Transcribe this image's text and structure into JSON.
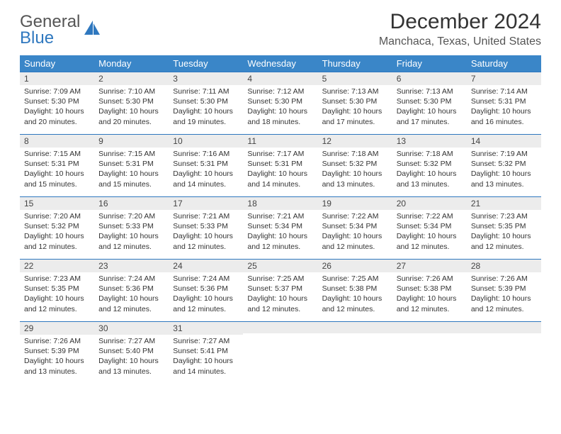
{
  "brand": {
    "general": "General",
    "blue": "Blue"
  },
  "title": "December 2024",
  "location": "Manchaca, Texas, United States",
  "colors": {
    "header_bg": "#3a86c8",
    "header_text": "#ffffff",
    "daynum_bg": "#ececec",
    "daynum_border": "#2f78bf",
    "body_text": "#333333",
    "logo_blue": "#2f78bf",
    "logo_gray": "#555555"
  },
  "weekdays": [
    "Sunday",
    "Monday",
    "Tuesday",
    "Wednesday",
    "Thursday",
    "Friday",
    "Saturday"
  ],
  "weeks": [
    [
      {
        "n": "1",
        "sr": "Sunrise: 7:09 AM",
        "ss": "Sunset: 5:30 PM",
        "d1": "Daylight: 10 hours",
        "d2": "and 20 minutes."
      },
      {
        "n": "2",
        "sr": "Sunrise: 7:10 AM",
        "ss": "Sunset: 5:30 PM",
        "d1": "Daylight: 10 hours",
        "d2": "and 20 minutes."
      },
      {
        "n": "3",
        "sr": "Sunrise: 7:11 AM",
        "ss": "Sunset: 5:30 PM",
        "d1": "Daylight: 10 hours",
        "d2": "and 19 minutes."
      },
      {
        "n": "4",
        "sr": "Sunrise: 7:12 AM",
        "ss": "Sunset: 5:30 PM",
        "d1": "Daylight: 10 hours",
        "d2": "and 18 minutes."
      },
      {
        "n": "5",
        "sr": "Sunrise: 7:13 AM",
        "ss": "Sunset: 5:30 PM",
        "d1": "Daylight: 10 hours",
        "d2": "and 17 minutes."
      },
      {
        "n": "6",
        "sr": "Sunrise: 7:13 AM",
        "ss": "Sunset: 5:30 PM",
        "d1": "Daylight: 10 hours",
        "d2": "and 17 minutes."
      },
      {
        "n": "7",
        "sr": "Sunrise: 7:14 AM",
        "ss": "Sunset: 5:31 PM",
        "d1": "Daylight: 10 hours",
        "d2": "and 16 minutes."
      }
    ],
    [
      {
        "n": "8",
        "sr": "Sunrise: 7:15 AM",
        "ss": "Sunset: 5:31 PM",
        "d1": "Daylight: 10 hours",
        "d2": "and 15 minutes."
      },
      {
        "n": "9",
        "sr": "Sunrise: 7:15 AM",
        "ss": "Sunset: 5:31 PM",
        "d1": "Daylight: 10 hours",
        "d2": "and 15 minutes."
      },
      {
        "n": "10",
        "sr": "Sunrise: 7:16 AM",
        "ss": "Sunset: 5:31 PM",
        "d1": "Daylight: 10 hours",
        "d2": "and 14 minutes."
      },
      {
        "n": "11",
        "sr": "Sunrise: 7:17 AM",
        "ss": "Sunset: 5:31 PM",
        "d1": "Daylight: 10 hours",
        "d2": "and 14 minutes."
      },
      {
        "n": "12",
        "sr": "Sunrise: 7:18 AM",
        "ss": "Sunset: 5:32 PM",
        "d1": "Daylight: 10 hours",
        "d2": "and 13 minutes."
      },
      {
        "n": "13",
        "sr": "Sunrise: 7:18 AM",
        "ss": "Sunset: 5:32 PM",
        "d1": "Daylight: 10 hours",
        "d2": "and 13 minutes."
      },
      {
        "n": "14",
        "sr": "Sunrise: 7:19 AM",
        "ss": "Sunset: 5:32 PM",
        "d1": "Daylight: 10 hours",
        "d2": "and 13 minutes."
      }
    ],
    [
      {
        "n": "15",
        "sr": "Sunrise: 7:20 AM",
        "ss": "Sunset: 5:32 PM",
        "d1": "Daylight: 10 hours",
        "d2": "and 12 minutes."
      },
      {
        "n": "16",
        "sr": "Sunrise: 7:20 AM",
        "ss": "Sunset: 5:33 PM",
        "d1": "Daylight: 10 hours",
        "d2": "and 12 minutes."
      },
      {
        "n": "17",
        "sr": "Sunrise: 7:21 AM",
        "ss": "Sunset: 5:33 PM",
        "d1": "Daylight: 10 hours",
        "d2": "and 12 minutes."
      },
      {
        "n": "18",
        "sr": "Sunrise: 7:21 AM",
        "ss": "Sunset: 5:34 PM",
        "d1": "Daylight: 10 hours",
        "d2": "and 12 minutes."
      },
      {
        "n": "19",
        "sr": "Sunrise: 7:22 AM",
        "ss": "Sunset: 5:34 PM",
        "d1": "Daylight: 10 hours",
        "d2": "and 12 minutes."
      },
      {
        "n": "20",
        "sr": "Sunrise: 7:22 AM",
        "ss": "Sunset: 5:34 PM",
        "d1": "Daylight: 10 hours",
        "d2": "and 12 minutes."
      },
      {
        "n": "21",
        "sr": "Sunrise: 7:23 AM",
        "ss": "Sunset: 5:35 PM",
        "d1": "Daylight: 10 hours",
        "d2": "and 12 minutes."
      }
    ],
    [
      {
        "n": "22",
        "sr": "Sunrise: 7:23 AM",
        "ss": "Sunset: 5:35 PM",
        "d1": "Daylight: 10 hours",
        "d2": "and 12 minutes."
      },
      {
        "n": "23",
        "sr": "Sunrise: 7:24 AM",
        "ss": "Sunset: 5:36 PM",
        "d1": "Daylight: 10 hours",
        "d2": "and 12 minutes."
      },
      {
        "n": "24",
        "sr": "Sunrise: 7:24 AM",
        "ss": "Sunset: 5:36 PM",
        "d1": "Daylight: 10 hours",
        "d2": "and 12 minutes."
      },
      {
        "n": "25",
        "sr": "Sunrise: 7:25 AM",
        "ss": "Sunset: 5:37 PM",
        "d1": "Daylight: 10 hours",
        "d2": "and 12 minutes."
      },
      {
        "n": "26",
        "sr": "Sunrise: 7:25 AM",
        "ss": "Sunset: 5:38 PM",
        "d1": "Daylight: 10 hours",
        "d2": "and 12 minutes."
      },
      {
        "n": "27",
        "sr": "Sunrise: 7:26 AM",
        "ss": "Sunset: 5:38 PM",
        "d1": "Daylight: 10 hours",
        "d2": "and 12 minutes."
      },
      {
        "n": "28",
        "sr": "Sunrise: 7:26 AM",
        "ss": "Sunset: 5:39 PM",
        "d1": "Daylight: 10 hours",
        "d2": "and 12 minutes."
      }
    ],
    [
      {
        "n": "29",
        "sr": "Sunrise: 7:26 AM",
        "ss": "Sunset: 5:39 PM",
        "d1": "Daylight: 10 hours",
        "d2": "and 13 minutes."
      },
      {
        "n": "30",
        "sr": "Sunrise: 7:27 AM",
        "ss": "Sunset: 5:40 PM",
        "d1": "Daylight: 10 hours",
        "d2": "and 13 minutes."
      },
      {
        "n": "31",
        "sr": "Sunrise: 7:27 AM",
        "ss": "Sunset: 5:41 PM",
        "d1": "Daylight: 10 hours",
        "d2": "and 14 minutes."
      },
      {
        "n": "",
        "sr": "",
        "ss": "",
        "d1": "",
        "d2": ""
      },
      {
        "n": "",
        "sr": "",
        "ss": "",
        "d1": "",
        "d2": ""
      },
      {
        "n": "",
        "sr": "",
        "ss": "",
        "d1": "",
        "d2": ""
      },
      {
        "n": "",
        "sr": "",
        "ss": "",
        "d1": "",
        "d2": ""
      }
    ]
  ]
}
